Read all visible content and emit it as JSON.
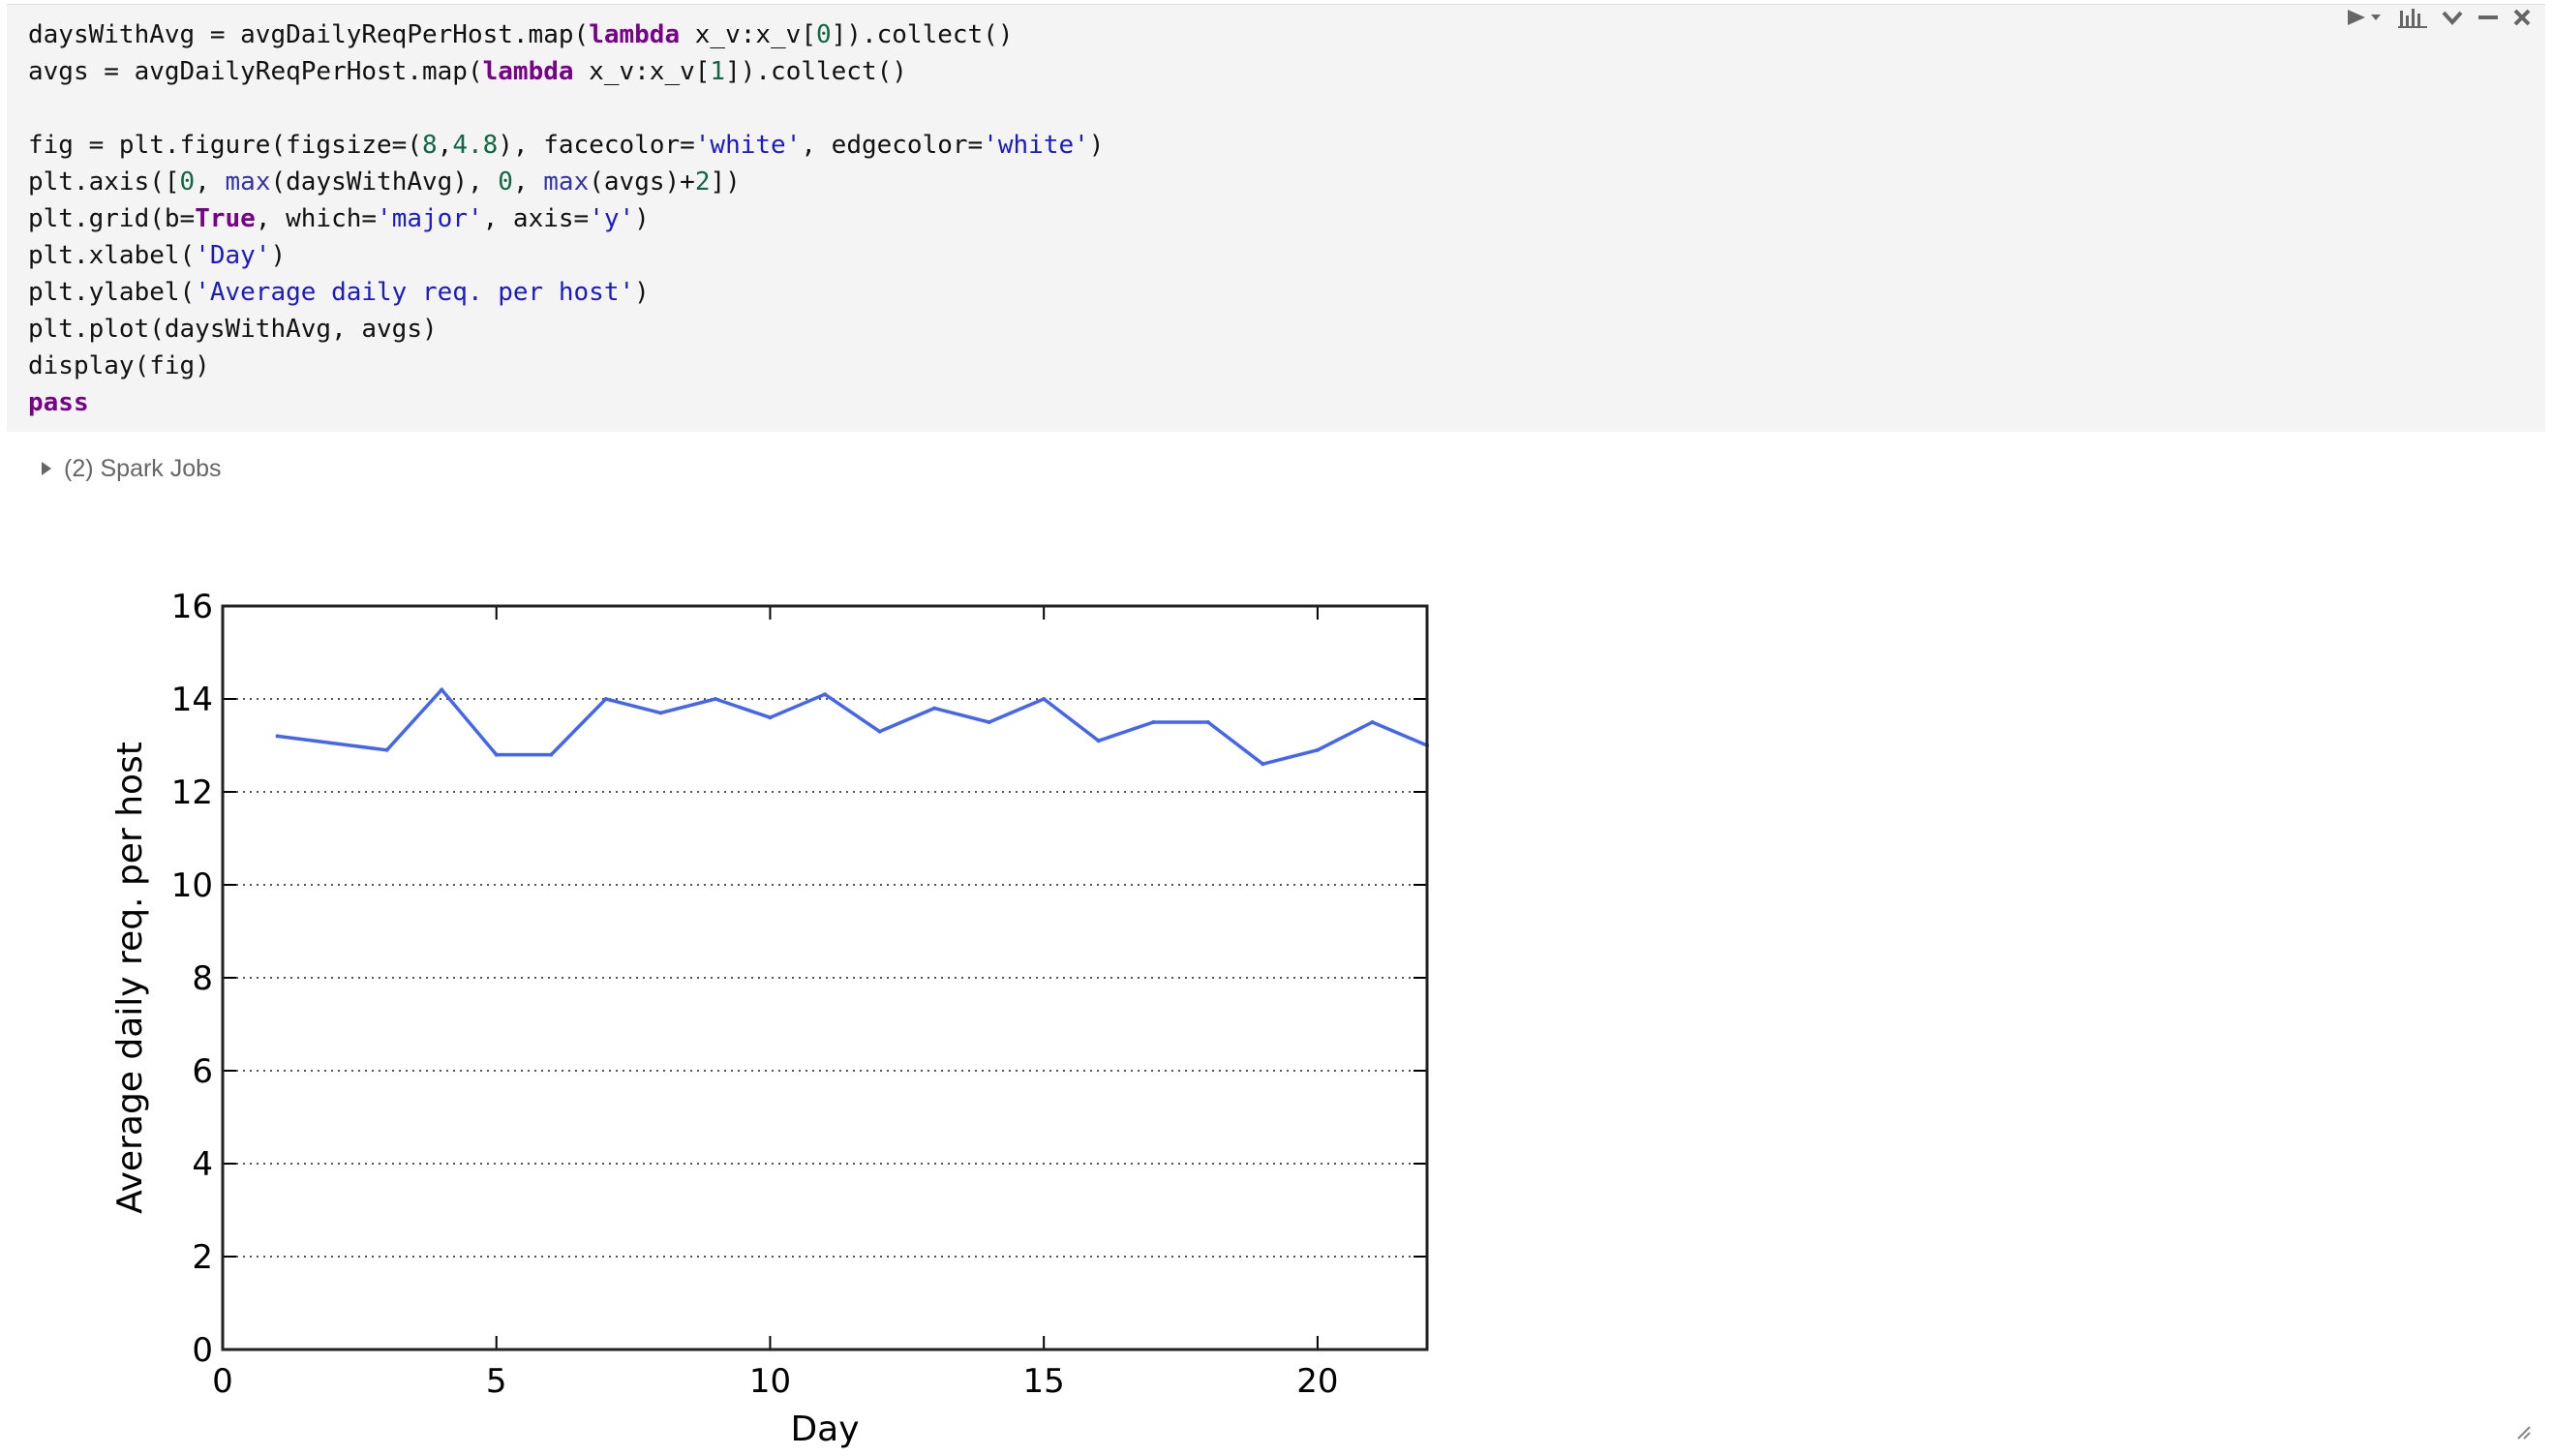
{
  "cell": {
    "code_lines": [
      [
        {
          "t": "daysWithAvg = avgDailyReqPerHost.map("
        },
        {
          "t": "lambda",
          "c": "kw"
        },
        {
          "t": " x_v:x_v["
        },
        {
          "t": "0",
          "c": "num"
        },
        {
          "t": "]).collect()"
        }
      ],
      [
        {
          "t": "avgs = avgDailyReqPerHost.map("
        },
        {
          "t": "lambda",
          "c": "kw"
        },
        {
          "t": " x_v:x_v["
        },
        {
          "t": "1",
          "c": "num"
        },
        {
          "t": "]).collect()"
        }
      ],
      [],
      [
        {
          "t": "fig = plt.figure(figsize=("
        },
        {
          "t": "8",
          "c": "num"
        },
        {
          "t": ","
        },
        {
          "t": "4.8",
          "c": "num"
        },
        {
          "t": "), facecolor="
        },
        {
          "t": "'white'",
          "c": "str"
        },
        {
          "t": ", edgecolor="
        },
        {
          "t": "'white'",
          "c": "str"
        },
        {
          "t": ")"
        }
      ],
      [
        {
          "t": "plt.axis(["
        },
        {
          "t": "0",
          "c": "num"
        },
        {
          "t": ", "
        },
        {
          "t": "max",
          "c": "bi"
        },
        {
          "t": "(daysWithAvg), "
        },
        {
          "t": "0",
          "c": "num"
        },
        {
          "t": ", "
        },
        {
          "t": "max",
          "c": "bi"
        },
        {
          "t": "(avgs)+"
        },
        {
          "t": "2",
          "c": "num"
        },
        {
          "t": "])"
        }
      ],
      [
        {
          "t": "plt.grid(b="
        },
        {
          "t": "True",
          "c": "kw"
        },
        {
          "t": ", which="
        },
        {
          "t": "'major'",
          "c": "str"
        },
        {
          "t": ", axis="
        },
        {
          "t": "'y'",
          "c": "str"
        },
        {
          "t": ")"
        }
      ],
      [
        {
          "t": "plt.xlabel("
        },
        {
          "t": "'Day'",
          "c": "str"
        },
        {
          "t": ")"
        }
      ],
      [
        {
          "t": "plt.ylabel("
        },
        {
          "t": "'Average daily req. per host'",
          "c": "str"
        },
        {
          "t": ")"
        }
      ],
      [
        {
          "t": "plt.plot(daysWithAvg, avgs)"
        }
      ],
      [
        {
          "t": "display(fig)"
        }
      ],
      [
        {
          "t": "pass",
          "c": "kw"
        }
      ]
    ]
  },
  "toolbar": {
    "icons": [
      "run-icon",
      "chart-icon",
      "collapse-icon",
      "minimize-icon",
      "close-icon"
    ]
  },
  "spark_jobs": {
    "label": "(2) Spark Jobs"
  },
  "colors": {
    "keyword": "#770088",
    "string": "#1a1ac8",
    "number": "#116644",
    "line": "#4466ee",
    "grid": "#555555"
  },
  "chart_data": {
    "type": "line",
    "title": "",
    "xlabel": "Day",
    "ylabel": "Average daily req. per host",
    "xlim": [
      0,
      22
    ],
    "ylim": [
      0,
      16
    ],
    "xticks": [
      0,
      5,
      10,
      15,
      20
    ],
    "yticks": [
      0,
      2,
      4,
      6,
      8,
      10,
      12,
      14,
      16
    ],
    "grid": "major y, dotted",
    "series": [
      {
        "x": [
          1,
          3,
          4,
          5,
          6,
          7,
          8,
          9,
          10,
          11,
          12,
          13,
          14,
          15,
          16,
          17,
          18,
          19,
          20,
          21,
          22
        ],
        "values": [
          13.2,
          12.9,
          14.2,
          12.8,
          12.8,
          14.0,
          13.7,
          14.0,
          13.6,
          14.1,
          13.3,
          13.8,
          13.5,
          14.0,
          13.1,
          13.5,
          13.5,
          12.6,
          12.9,
          13.5,
          13.0
        ]
      }
    ]
  }
}
